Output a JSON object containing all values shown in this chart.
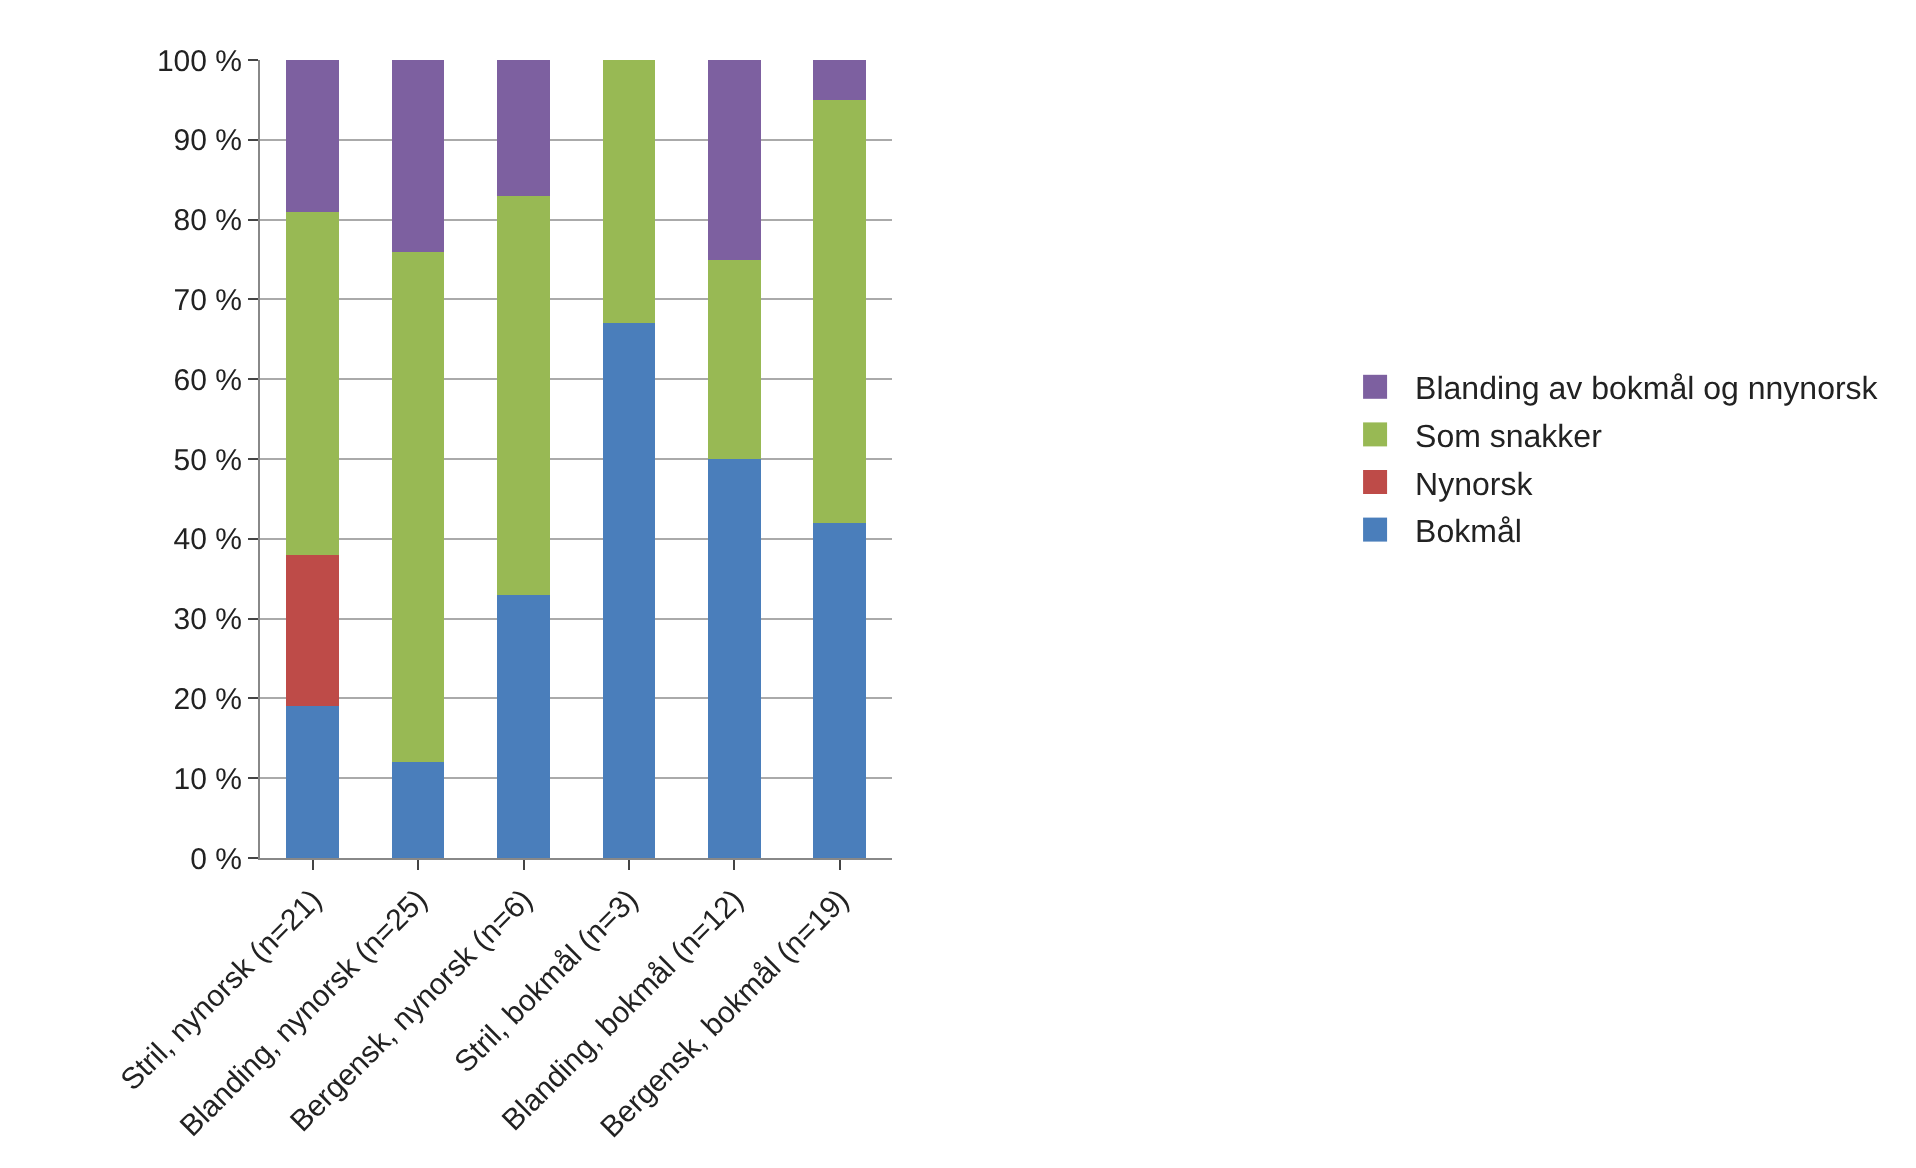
{
  "chart_data": {
    "type": "bar",
    "stacked": true,
    "categories": [
      "Stril, nynorsk (n=21)",
      "Blanding, nynorsk (n=25)",
      "Bergensk, nynorsk (n=6)",
      "Stril, bokmål (n=3)",
      "Blanding, bokmål (n=12)",
      "Bergensk, bokmål (n=19)"
    ],
    "series": [
      {
        "name": "Bokmål",
        "color": "#4a7ebb",
        "values": [
          19,
          12,
          33,
          67,
          50,
          42
        ]
      },
      {
        "name": "Nynorsk",
        "color": "#be4b48",
        "values": [
          19,
          0,
          0,
          0,
          0,
          0
        ]
      },
      {
        "name": "Som snakker",
        "color": "#98b954",
        "values": [
          43,
          64,
          50,
          33,
          25,
          53
        ]
      },
      {
        "name": "Blanding av bokmål og nnynorsk",
        "color": "#7d60a0",
        "values": [
          19,
          24,
          17,
          0,
          25,
          5
        ]
      }
    ],
    "ylim": [
      0,
      100
    ],
    "yticks": [
      {
        "value": 0,
        "label": "0 %"
      },
      {
        "value": 10,
        "label": "10 %"
      },
      {
        "value": 20,
        "label": "20 %"
      },
      {
        "value": 30,
        "label": "30 %"
      },
      {
        "value": 40,
        "label": "40 %"
      },
      {
        "value": 50,
        "label": "50 %"
      },
      {
        "value": 60,
        "label": "60 %"
      },
      {
        "value": 70,
        "label": "70 %"
      },
      {
        "value": 80,
        "label": "80 %"
      },
      {
        "value": 90,
        "label": "90 %"
      },
      {
        "value": 100,
        "label": "100 %"
      }
    ],
    "grid": "y",
    "legend": "right"
  }
}
